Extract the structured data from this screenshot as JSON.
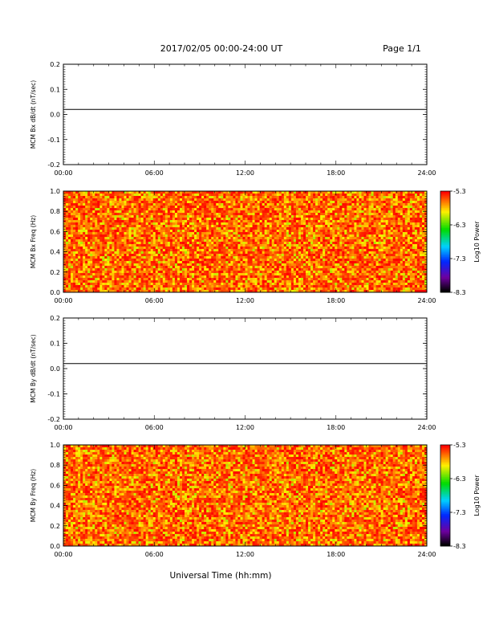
{
  "header": {
    "title": "2017/02/05  00:00-24:00 UT",
    "page": "Page 1/1"
  },
  "x_axis_title": "Universal Time (hh:mm)",
  "chart_data": [
    {
      "type": "line",
      "ylabel": "MCM Bx dB/dt (nT/sec)",
      "x_ticks": [
        "00:00",
        "06:00",
        "12:00",
        "18:00",
        "24:00"
      ],
      "xlim": [
        0,
        24
      ],
      "y_ticks": [
        "0.2",
        "0.1",
        "0.0",
        "-0.1",
        "-0.2"
      ],
      "ylim": [
        -0.2,
        0.2
      ],
      "series": [
        {
          "x": [
            0,
            24
          ],
          "y": [
            0.02,
            0.02
          ]
        }
      ],
      "color": "#000000"
    },
    {
      "type": "heatmap",
      "ylabel": "MCM Bx Freq (Hz)",
      "x_ticks": [
        "00:00",
        "06:00",
        "12:00",
        "18:00",
        "24:00"
      ],
      "xlim": [
        0,
        24
      ],
      "y_ticks": [
        "1.0",
        "0.8",
        "0.6",
        "0.4",
        "0.2",
        "0.0"
      ],
      "ylim": [
        0,
        1
      ],
      "colorbar": {
        "label": "Log10 Power",
        "ticks": [
          "-5.3",
          "-6.3",
          "-7.3",
          "-8.3"
        ],
        "range": [
          -8.3,
          -5.3
        ]
      },
      "value_range_observed": [
        -6.1,
        -5.3
      ]
    },
    {
      "type": "line",
      "ylabel": "MCM By dB/dt (nT/sec)",
      "x_ticks": [
        "00:00",
        "06:00",
        "12:00",
        "18:00",
        "24:00"
      ],
      "xlim": [
        0,
        24
      ],
      "y_ticks": [
        "0.2",
        "0.1",
        "0.0",
        "-0.1",
        "-0.2"
      ],
      "ylim": [
        -0.2,
        0.2
      ],
      "series": [
        {
          "x": [
            0,
            24
          ],
          "y": [
            0.02,
            0.02
          ]
        }
      ],
      "color": "#000000"
    },
    {
      "type": "heatmap",
      "ylabel": "MCM By Freq (Hz)",
      "x_ticks": [
        "00:00",
        "06:00",
        "12:00",
        "18:00",
        "24:00"
      ],
      "xlim": [
        0,
        24
      ],
      "y_ticks": [
        "1.0",
        "0.8",
        "0.6",
        "0.4",
        "0.2",
        "0.0"
      ],
      "ylim": [
        0,
        1
      ],
      "colorbar": {
        "label": "Log10 Power",
        "ticks": [
          "-5.3",
          "-6.3",
          "-7.3",
          "-8.3"
        ],
        "range": [
          -8.3,
          -5.3
        ]
      },
      "value_range_observed": [
        -6.1,
        -5.3
      ]
    }
  ]
}
